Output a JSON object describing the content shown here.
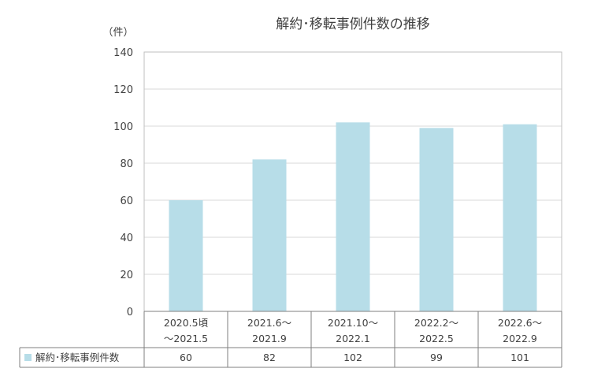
{
  "chart_data": {
    "type": "bar",
    "title": "解約･移転事例件数の推移",
    "ylabel": "（件）",
    "ylim": [
      0,
      140
    ],
    "yticks": [
      0,
      20,
      40,
      60,
      80,
      100,
      120,
      140
    ],
    "grid": true,
    "categories": [
      [
        "2020.5頃",
        "～2021.5"
      ],
      [
        "2021.6～",
        "2021.9"
      ],
      [
        "2021.10～",
        "2022.1"
      ],
      [
        "2022.2～",
        "2022.5"
      ],
      [
        "2022.6～",
        "2022.9"
      ]
    ],
    "series": [
      {
        "name": "解約･移転事例件数",
        "values": [
          60,
          82,
          102,
          99,
          101
        ],
        "color": "#b7dde8"
      }
    ],
    "data_table": true,
    "legend": "bottom-left in data table"
  }
}
